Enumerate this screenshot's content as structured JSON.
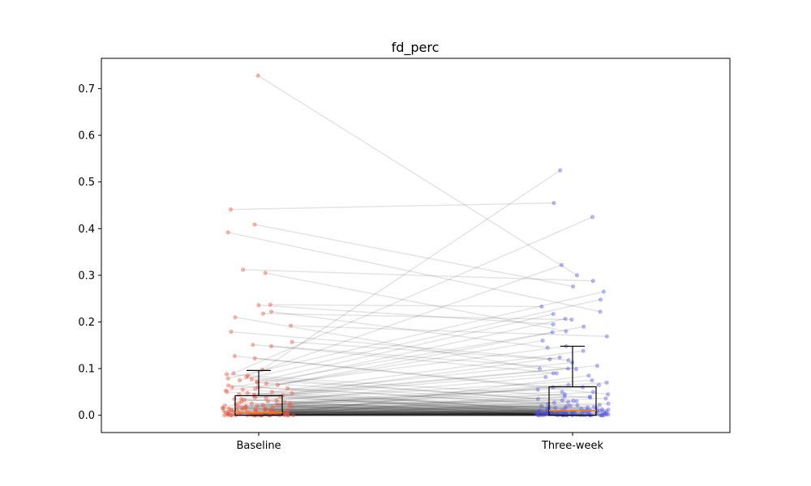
{
  "chart_data": {
    "type": "box",
    "title": "fd_perc",
    "xlabel": "",
    "ylabel": "",
    "categories": [
      "Baseline",
      "Three-week"
    ],
    "ylim": [
      -0.037,
      0.765
    ],
    "yticks": [
      0.0,
      0.1,
      0.2,
      0.3,
      0.4,
      0.5,
      0.6,
      0.7
    ],
    "ytick_labels": [
      "0.0",
      "0.1",
      "0.2",
      "0.3",
      "0.4",
      "0.5",
      "0.6",
      "0.7"
    ],
    "grid": false,
    "colors": {
      "baseline_points": "#e8553f",
      "threeweek_points": "#4a4ae8",
      "pair_lines": "#000000",
      "box": "#000000",
      "median": "#ff7f0e"
    },
    "boxes": [
      {
        "name": "Baseline",
        "whisker_low": 0.0,
        "q1": 0.0,
        "median": 0.006,
        "q3": 0.042,
        "whisker_high": 0.096
      },
      {
        "name": "Three-week",
        "whisker_low": 0.0,
        "q1": 0.0,
        "median": 0.01,
        "q3": 0.061,
        "whisker_high": 0.148
      }
    ],
    "pairs": [
      [
        0.728,
        0.3
      ],
      [
        0.441,
        0.455
      ],
      [
        0.409,
        0.276
      ],
      [
        0.392,
        0.222
      ],
      [
        0.305,
        0.18
      ],
      [
        0.312,
        0.288
      ],
      [
        0.237,
        0.233
      ],
      [
        0.236,
        0.195
      ],
      [
        0.222,
        0.145
      ],
      [
        0.218,
        0.205
      ],
      [
        0.21,
        0.1
      ],
      [
        0.192,
        0.169
      ],
      [
        0.179,
        0.118
      ],
      [
        0.157,
        0.12
      ],
      [
        0.151,
        0.099
      ],
      [
        0.148,
        0.09
      ],
      [
        0.127,
        0.045
      ],
      [
        0.122,
        0.06
      ],
      [
        0.098,
        0.525
      ],
      [
        0.09,
        0.425
      ],
      [
        0.085,
        0.322
      ],
      [
        0.079,
        0.265
      ],
      [
        0.075,
        0.248
      ],
      [
        0.072,
        0.217
      ],
      [
        0.068,
        0.207
      ],
      [
        0.065,
        0.19
      ],
      [
        0.06,
        0.178
      ],
      [
        0.057,
        0.16
      ],
      [
        0.053,
        0.148
      ],
      [
        0.05,
        0.138
      ],
      [
        0.047,
        0.124
      ],
      [
        0.044,
        0.113
      ],
      [
        0.041,
        0.106
      ],
      [
        0.038,
        0.1
      ],
      [
        0.035,
        0.09
      ],
      [
        0.032,
        0.082
      ],
      [
        0.03,
        0.075
      ],
      [
        0.028,
        0.07
      ],
      [
        0.026,
        0.065
      ],
      [
        0.024,
        0.06
      ],
      [
        0.022,
        0.055
      ],
      [
        0.02,
        0.05
      ],
      [
        0.019,
        0.045
      ],
      [
        0.018,
        0.04
      ],
      [
        0.017,
        0.036
      ],
      [
        0.016,
        0.032
      ],
      [
        0.015,
        0.028
      ],
      [
        0.014,
        0.025
      ],
      [
        0.013,
        0.022
      ],
      [
        0.012,
        0.02
      ],
      [
        0.011,
        0.018
      ],
      [
        0.01,
        0.016
      ],
      [
        0.009,
        0.014
      ],
      [
        0.008,
        0.012
      ],
      [
        0.007,
        0.01
      ],
      [
        0.006,
        0.009
      ],
      [
        0.005,
        0.008
      ],
      [
        0.004,
        0.006
      ],
      [
        0.003,
        0.005
      ],
      [
        0.002,
        0.004
      ],
      [
        0.06,
        0.01
      ],
      [
        0.055,
        0.008
      ],
      [
        0.05,
        0.006
      ],
      [
        0.045,
        0.005
      ],
      [
        0.04,
        0.004
      ],
      [
        0.035,
        0.003
      ],
      [
        0.03,
        0.002
      ],
      [
        0.025,
        0.001
      ],
      [
        0.02,
        0.0
      ],
      [
        0.015,
        0.0
      ],
      [
        0.01,
        0.0
      ],
      [
        0.008,
        0.0
      ],
      [
        0.006,
        0.0
      ],
      [
        0.004,
        0.0
      ],
      [
        0.002,
        0.0
      ],
      [
        0.001,
        0.0
      ],
      [
        0.0,
        0.0
      ],
      [
        0.0,
        0.0
      ],
      [
        0.0,
        0.0
      ],
      [
        0.0,
        0.0
      ],
      [
        0.0,
        0.0
      ],
      [
        0.0,
        0.0
      ],
      [
        0.0,
        0.0
      ],
      [
        0.0,
        0.0
      ],
      [
        0.0,
        0.002
      ],
      [
        0.0,
        0.004
      ],
      [
        0.0,
        0.006
      ],
      [
        0.0,
        0.008
      ],
      [
        0.0,
        0.012
      ],
      [
        0.0,
        0.016
      ],
      [
        0.0,
        0.02
      ],
      [
        0.0,
        0.03
      ],
      [
        0.001,
        0.04
      ],
      [
        0.002,
        0.05
      ],
      [
        0.003,
        0.065
      ],
      [
        0.004,
        0.085
      ],
      [
        0.005,
        0.001
      ],
      [
        0.007,
        0.002
      ],
      [
        0.009,
        0.003
      ],
      [
        0.011,
        0.004
      ],
      [
        0.013,
        0.005
      ],
      [
        0.016,
        0.006
      ],
      [
        0.018,
        0.007
      ],
      [
        0.021,
        0.008
      ],
      [
        0.024,
        0.009
      ],
      [
        0.027,
        0.011
      ],
      [
        0.033,
        0.013
      ],
      [
        0.037,
        0.015
      ],
      [
        0.043,
        0.017
      ],
      [
        0.048,
        0.019
      ],
      [
        0.058,
        0.021
      ],
      [
        0.064,
        0.024
      ],
      [
        0.07,
        0.027
      ],
      [
        0.077,
        0.031
      ],
      [
        0.082,
        0.035
      ],
      [
        0.088,
        0.038
      ],
      [
        0.001,
        0.001
      ],
      [
        0.002,
        0.002
      ],
      [
        0.001,
        0.003
      ],
      [
        0.003,
        0.001
      ],
      [
        0.0,
        0.001
      ],
      [
        0.001,
        0.0
      ],
      [
        0.002,
        0.001
      ],
      [
        0.0,
        0.003
      ],
      [
        0.004,
        0.002
      ],
      [
        0.003,
        0.004
      ],
      [
        0.006,
        0.003
      ],
      [
        0.005,
        0.005
      ],
      [
        0.008,
        0.004
      ],
      [
        0.007,
        0.007
      ],
      [
        0.01,
        0.006
      ],
      [
        0.012,
        0.008
      ],
      [
        0.014,
        0.01
      ],
      [
        0.017,
        0.012
      ],
      [
        0.019,
        0.014
      ],
      [
        0.023,
        0.017
      ]
    ]
  }
}
